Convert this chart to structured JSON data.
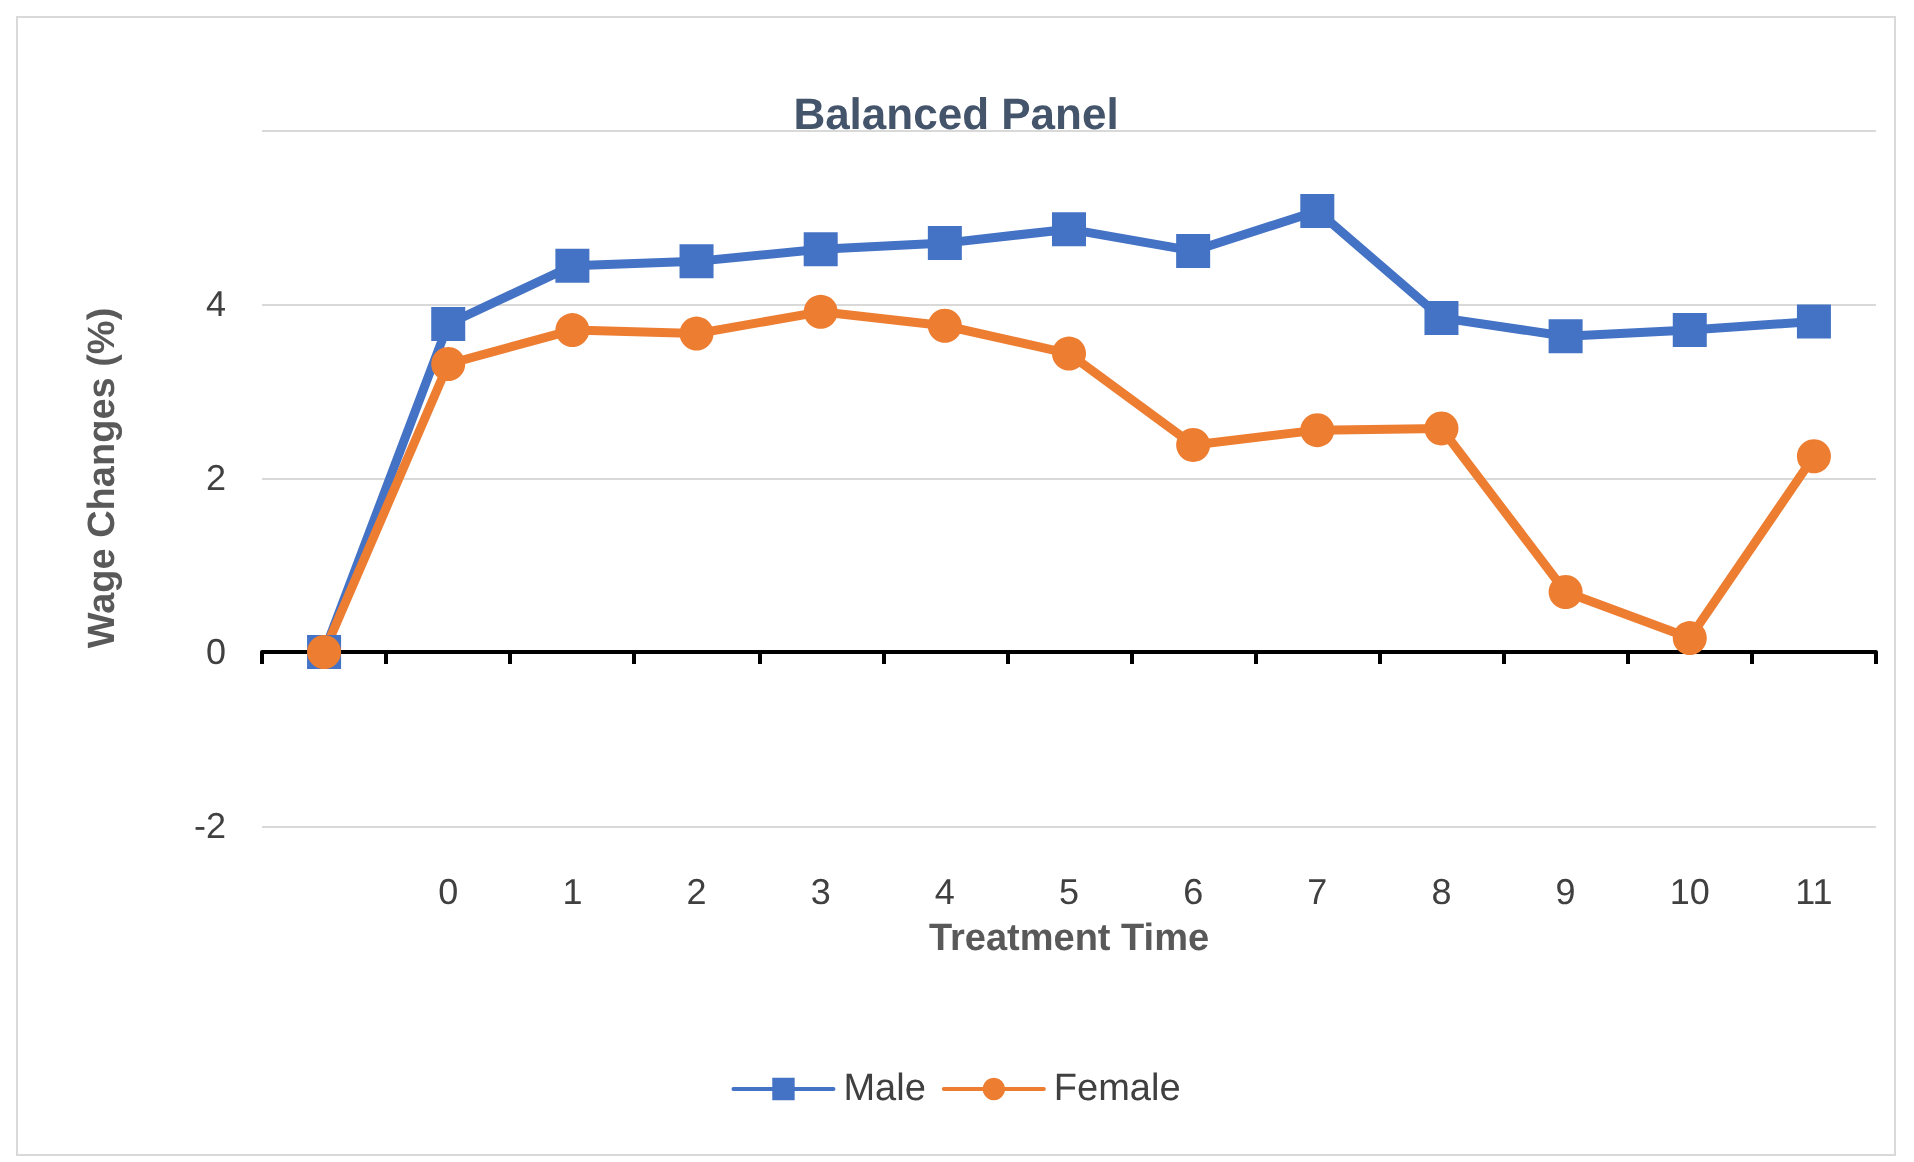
{
  "chart_data": {
    "type": "line",
    "title": "Balanced Panel",
    "xlabel": "Treatment Time",
    "ylabel": "Wage Changes (%)",
    "categories": [
      null,
      "0",
      "1",
      "2",
      "3",
      "4",
      "5",
      "6",
      "7",
      "8",
      "9",
      "10",
      "11"
    ],
    "series": [
      {
        "name": "Male",
        "color": "#4472c4",
        "marker": "square",
        "values": [
          0,
          3.77,
          4.44,
          4.49,
          4.63,
          4.7,
          4.86,
          4.61,
          5.07,
          3.84,
          3.63,
          3.7,
          3.8
        ]
      },
      {
        "name": "Female",
        "color": "#ed7d31",
        "marker": "circle",
        "values": [
          0,
          3.31,
          3.7,
          3.66,
          3.91,
          3.75,
          3.43,
          2.38,
          2.55,
          2.57,
          0.69,
          0.16,
          2.25
        ]
      }
    ],
    "ylim": [
      -2,
      6
    ],
    "yticks": [
      -2,
      0,
      2,
      4,
      {
        "value": 6,
        "label": null
      }
    ],
    "grid": "y",
    "legend": "bottom",
    "line_style": "solid"
  }
}
